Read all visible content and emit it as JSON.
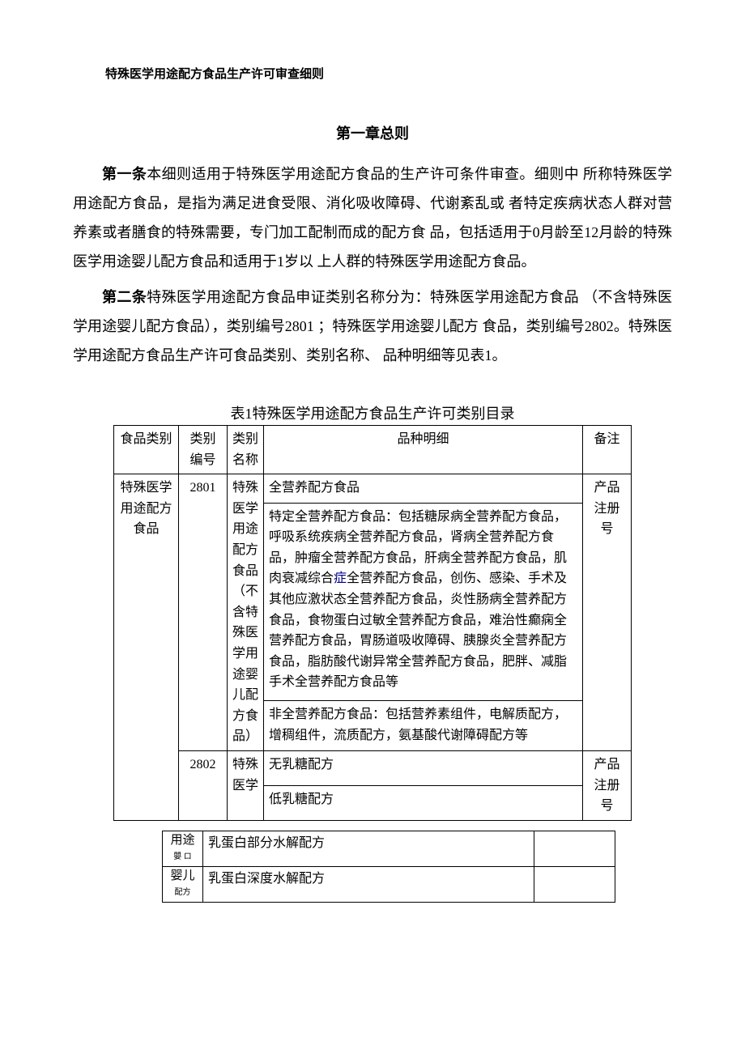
{
  "doc_title": "特殊医学用途配方食品生产许可审查细则",
  "chapter_title": "第一章总则",
  "article1_label": "第一条",
  "article1_text": "本细则适用于特殊医学用途配方食品的生产许可条件审查。细则中 所称特殊医学用途配方食品，是指为满足进食受限、消化吸收障碍、代谢紊乱或 者特定疾病状态人群对营养素或者膳食的特殊需要，专门加工配制而成的配方食 品，包括适用于0月龄至12月龄的特殊医学用途婴儿配方食品和适用于1岁以 上人群的特殊医学用途配方食品。",
  "article2_label": "第二条",
  "article2_text": "特殊医学用途配方食品申证类别名称分为：特殊医学用途配方食品 （不含特殊医学用途婴儿配方食品），类别编号2801 ；特殊医学用途婴儿配方 食品，类别编号2802。特殊医学用途配方食品生产许可食品类别、类别名称、 品种明细等见表1。",
  "table_title": "表1特殊医学用途配方食品生产许可类别目录",
  "table1": {
    "headers": {
      "category": "食品类别",
      "code": "类别 编号",
      "name": "类别名称",
      "detail": "品种明细",
      "remark": "备注"
    },
    "row1": {
      "category": "特殊医学用途配方食品",
      "code": "2801",
      "name": "特殊医学用途配方食品（不含特殊医学用途婴儿配方食品）",
      "detail_a": "全营养配方食品",
      "detail_b": "特定全营养配方食品：包括糖尿病全营养配方食品，呼吸系统疾病全营养配方食品，肾病全营养配方食品，肿瘤全营养配方食品，肝病全营养配方食品，肌肉衰减综合",
      "detail_b_zheng": "症",
      "detail_b_after": "全营养配方食品，创伤、感染、手术及其他应激状态全营养配方食品，炎性肠病全营养配方食品，食物蛋白过敏全营养配方食品，难治性癫痫全营养配方食品，胃肠道吸收障碍、胰腺炎全营养配方食品，脂肪酸代谢异常全营养配方食品，肥胖、减脂手术全营养配方食品等",
      "detail_c": "非全营养配方食品：包括营养素组件，电解质配方，增稠组件，流质配方，氨基酸代谢障碍配方等",
      "remark": "产品注册号"
    },
    "row2": {
      "code": "2802",
      "name": "特殊医学",
      "detail_a": "无乳糖配方",
      "detail_b": "低乳糖配方",
      "remark": "产品注册号"
    }
  },
  "table2": {
    "col1_a": "用途",
    "col1_a_small": "嬰 ロ",
    "col1_b": "婴儿",
    "col1_b_small": "配方",
    "row1": "乳蛋白部分水解配方",
    "row2": "乳蛋白深度水解配方"
  },
  "colors": {
    "text": "#000000",
    "background": "#ffffff",
    "border": "#000000",
    "zheng": "#000088"
  },
  "typography": {
    "body_fontsize": 18,
    "title_fontsize": 15,
    "table_fontsize": 16,
    "line_height": 2.0
  }
}
